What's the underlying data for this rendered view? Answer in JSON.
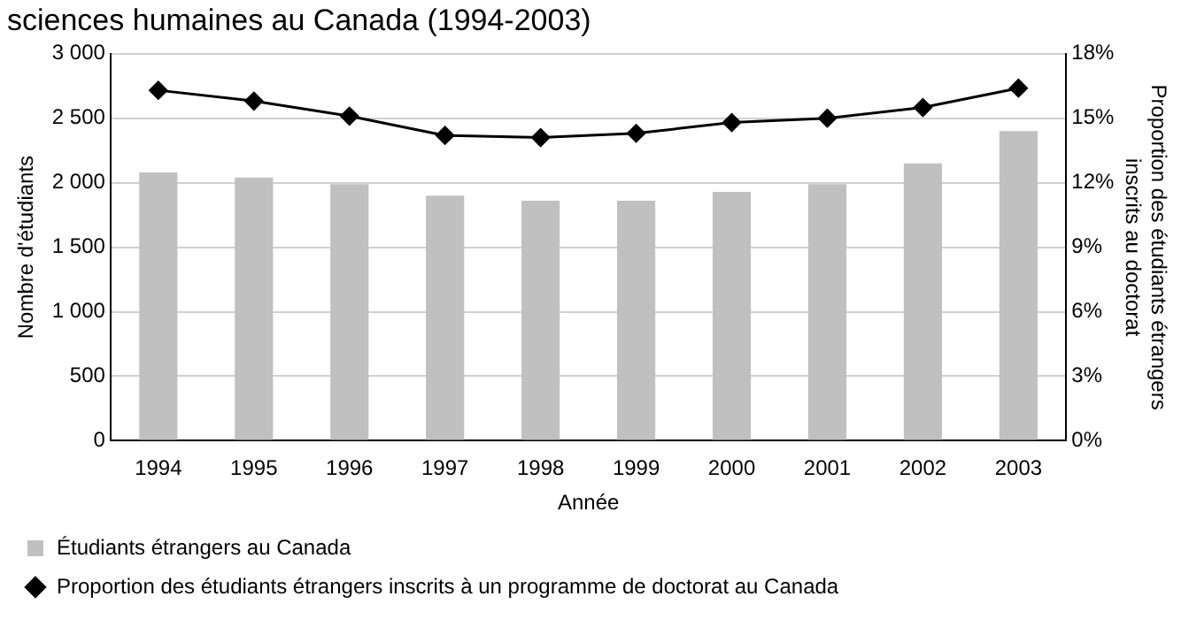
{
  "chart_data": {
    "type": "bar",
    "title": "sciences humaines au Canada (1994-2003)",
    "xlabel": "Année",
    "ylabel": "Nombre d'étudiants",
    "y2label": "Proportion des étudiants étrangers inscrits au doctorat",
    "categories": [
      "1994",
      "1995",
      "1996",
      "1997",
      "1998",
      "1999",
      "2000",
      "2001",
      "2002",
      "2003"
    ],
    "series": [
      {
        "name": "Étudiants étrangers au Canada",
        "color": "#c0c0c0",
        "values": [
          2080,
          2040,
          1990,
          1900,
          1860,
          1860,
          1930,
          1990,
          2150,
          2400
        ]
      },
      {
        "name": "Proportion des étudiants étrangers inscrits à un programme de doctorat au Canada",
        "type": "line",
        "axis": "y2",
        "color": "#000000",
        "marker": "diamond",
        "values": [
          16.3,
          15.8,
          15.1,
          14.2,
          14.1,
          14.3,
          14.8,
          15.0,
          15.5,
          16.4
        ]
      }
    ],
    "ylim": [
      0,
      3000
    ],
    "yticks": [
      0,
      {
        "value": 500,
        "label": "500"
      },
      {
        "value": 1000,
        "label": "1 000"
      },
      {
        "value": 1500,
        "label": "1 500"
      },
      {
        "value": 2000,
        "label": "2 000"
      },
      {
        "value": 2500,
        "label": "2 500"
      },
      {
        "value": 3000,
        "label": "3 000"
      }
    ],
    "y2lim": [
      0,
      18
    ],
    "y2ticks": [
      {
        "value": 0,
        "label": "0%"
      },
      {
        "value": 3,
        "label": "3%"
      },
      {
        "value": 6,
        "label": "6%"
      },
      {
        "value": 9,
        "label": "9%"
      },
      {
        "value": 12,
        "label": "12%"
      },
      {
        "value": 15,
        "label": "15%"
      },
      {
        "value": 18,
        "label": "18%"
      }
    ],
    "grid": "y",
    "legend": "bottom"
  }
}
